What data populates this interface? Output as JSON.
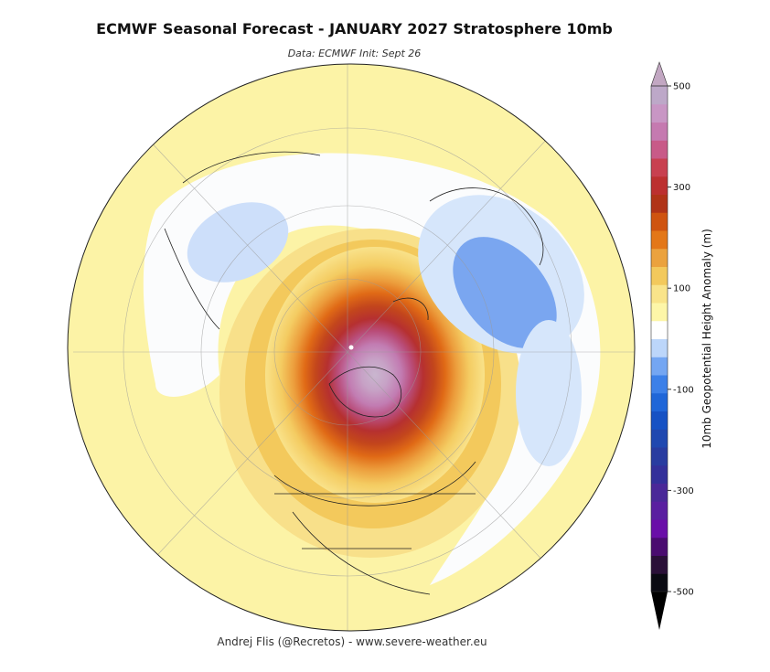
{
  "header": {
    "title": "ECMWF Seasonal Forecast -  JANUARY 2027 Stratosphere 10mb",
    "subtitle": "Data: ECMWF   Init: Sept 26"
  },
  "footer": {
    "credit": "Andrej Flis (@Recretos) - www.severe-weather.eu"
  },
  "map": {
    "projection": "north-polar-stereographic",
    "field": "10mb geopotential height anomaly",
    "features": [
      "strong positive anomaly centered over northern Canada / Arctic archipelago",
      "negative anomaly over Scandinavia / western Russia",
      "weak negative anomaly over eastern Siberia",
      "weak negative anomaly over the North Atlantic"
    ]
  },
  "colorbar": {
    "label": "10mb Geopotential Height Anomaly (m)",
    "ticks": [
      "500",
      "300",
      "100",
      "-100",
      "-300",
      "-500"
    ],
    "tick_values": [
      500,
      300,
      100,
      -100,
      -300,
      -500
    ],
    "range": [
      -500,
      500
    ],
    "extend": "both",
    "colors": [
      "#0a0a12",
      "#2a1038",
      "#4a0c70",
      "#6a0ea8",
      "#5a1fa0",
      "#4a2898",
      "#33309a",
      "#283ca0",
      "#1f48b0",
      "#1652c4",
      "#1f66d8",
      "#3c80e8",
      "#74a6f2",
      "#bcd6fa",
      "#ffffff",
      "#fdf6a8",
      "#f9e48a",
      "#f3c95c",
      "#eba23e",
      "#e37718",
      "#cf5410",
      "#b03418",
      "#bc3030",
      "#c84050",
      "#c85a88",
      "#c57ab0",
      "#c896c4",
      "#bda8c8"
    ],
    "over_color": "#c2a7c2",
    "under_color": "#000000"
  }
}
